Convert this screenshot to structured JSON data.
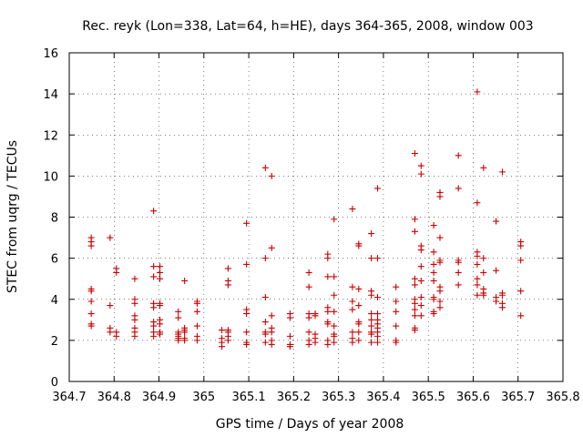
{
  "chart_data": {
    "type": "scatter",
    "title": "Rec. reyk (Lon=338, Lat=64, h=HE), days 364-365, 2008, window 003",
    "xlabel": "GPS time / Days of year 2008",
    "ylabel": "STEC from uqrg / TECUs",
    "xlim": [
      364.7,
      365.8
    ],
    "ylim": [
      0,
      16
    ],
    "xticks": [
      "364.7",
      "364.8",
      "364.9",
      "365",
      "365.1",
      "365.2",
      "365.3",
      "365.4",
      "365.5",
      "365.6",
      "365.7",
      "365.8"
    ],
    "yticks": [
      "0",
      "2",
      "4",
      "6",
      "8",
      "10",
      "12",
      "14",
      "16"
    ],
    "grid": true,
    "legend": "none",
    "marker": "plus",
    "color": "#cc0000",
    "points": [
      [
        364.749,
        7.0
      ],
      [
        364.749,
        6.8
      ],
      [
        364.749,
        6.6
      ],
      [
        364.749,
        4.5
      ],
      [
        364.749,
        4.4
      ],
      [
        364.749,
        3.9
      ],
      [
        364.749,
        3.3
      ],
      [
        364.749,
        2.8
      ],
      [
        364.749,
        2.7
      ],
      [
        364.791,
        7.0
      ],
      [
        364.791,
        3.7
      ],
      [
        364.791,
        2.6
      ],
      [
        364.791,
        2.4
      ],
      [
        364.805,
        5.5
      ],
      [
        364.805,
        5.3
      ],
      [
        364.805,
        2.4
      ],
      [
        364.805,
        2.2
      ],
      [
        364.846,
        5.0
      ],
      [
        364.846,
        4.0
      ],
      [
        364.846,
        3.8
      ],
      [
        364.846,
        3.2
      ],
      [
        364.846,
        3.0
      ],
      [
        364.846,
        2.6
      ],
      [
        364.846,
        2.4
      ],
      [
        364.846,
        2.2
      ],
      [
        364.888,
        8.3
      ],
      [
        364.888,
        5.6
      ],
      [
        364.888,
        5.1
      ],
      [
        364.888,
        3.8
      ],
      [
        364.888,
        3.6
      ],
      [
        364.888,
        2.9
      ],
      [
        364.888,
        2.7
      ],
      [
        364.888,
        2.4
      ],
      [
        364.888,
        2.2
      ],
      [
        364.902,
        5.6
      ],
      [
        364.902,
        5.3
      ],
      [
        364.902,
        5.0
      ],
      [
        364.902,
        3.8
      ],
      [
        364.902,
        3.7
      ],
      [
        364.902,
        3.0
      ],
      [
        364.902,
        2.8
      ],
      [
        364.902,
        2.4
      ],
      [
        364.902,
        2.3
      ],
      [
        364.943,
        3.4
      ],
      [
        364.943,
        3.1
      ],
      [
        364.943,
        2.4
      ],
      [
        364.943,
        2.3
      ],
      [
        364.943,
        2.2
      ],
      [
        364.943,
        2.1
      ],
      [
        364.943,
        2.0
      ],
      [
        364.957,
        4.9
      ],
      [
        364.957,
        2.6
      ],
      [
        364.957,
        2.5
      ],
      [
        364.957,
        2.4
      ],
      [
        364.957,
        2.1
      ],
      [
        364.957,
        2.0
      ],
      [
        364.985,
        3.9
      ],
      [
        364.985,
        3.8
      ],
      [
        364.985,
        3.4
      ],
      [
        364.985,
        2.7
      ],
      [
        364.985,
        2.2
      ],
      [
        364.985,
        2.0
      ],
      [
        365.04,
        2.5
      ],
      [
        365.04,
        2.1
      ],
      [
        365.04,
        1.9
      ],
      [
        365.04,
        1.7
      ],
      [
        365.054,
        5.5
      ],
      [
        365.054,
        4.9
      ],
      [
        365.054,
        4.7
      ],
      [
        365.054,
        2.5
      ],
      [
        365.054,
        2.4
      ],
      [
        365.054,
        2.2
      ],
      [
        365.054,
        2.0
      ],
      [
        365.095,
        7.7
      ],
      [
        365.095,
        5.7
      ],
      [
        365.095,
        3.5
      ],
      [
        365.095,
        3.3
      ],
      [
        365.095,
        2.4
      ],
      [
        365.095,
        1.9
      ],
      [
        365.095,
        1.8
      ],
      [
        365.137,
        10.4
      ],
      [
        365.137,
        6.0
      ],
      [
        365.137,
        4.1
      ],
      [
        365.137,
        2.9
      ],
      [
        365.137,
        2.4
      ],
      [
        365.137,
        2.3
      ],
      [
        365.137,
        1.9
      ],
      [
        365.151,
        10.0
      ],
      [
        365.151,
        6.5
      ],
      [
        365.151,
        3.2
      ],
      [
        365.151,
        2.6
      ],
      [
        365.151,
        2.4
      ],
      [
        365.151,
        2.0
      ],
      [
        365.151,
        1.8
      ],
      [
        365.192,
        3.3
      ],
      [
        365.192,
        3.1
      ],
      [
        365.192,
        2.2
      ],
      [
        365.192,
        1.8
      ],
      [
        365.192,
        1.7
      ],
      [
        365.234,
        5.3
      ],
      [
        365.234,
        4.6
      ],
      [
        365.234,
        3.3
      ],
      [
        365.234,
        3.1
      ],
      [
        365.234,
        2.4
      ],
      [
        365.234,
        2.0
      ],
      [
        365.234,
        1.8
      ],
      [
        365.248,
        3.3
      ],
      [
        365.248,
        3.2
      ],
      [
        365.248,
        2.3
      ],
      [
        365.248,
        2.1
      ],
      [
        365.248,
        1.9
      ],
      [
        365.276,
        6.2
      ],
      [
        365.276,
        6.0
      ],
      [
        365.276,
        5.1
      ],
      [
        365.276,
        3.6
      ],
      [
        365.276,
        3.4
      ],
      [
        365.276,
        2.9
      ],
      [
        365.276,
        2.8
      ],
      [
        365.276,
        2.0
      ],
      [
        365.276,
        1.8
      ],
      [
        365.29,
        7.9
      ],
      [
        365.29,
        5.1
      ],
      [
        365.29,
        4.2
      ],
      [
        365.29,
        3.4
      ],
      [
        365.29,
        2.7
      ],
      [
        365.29,
        2.3
      ],
      [
        365.29,
        2.2
      ],
      [
        365.29,
        1.9
      ],
      [
        365.331,
        8.4
      ],
      [
        365.331,
        4.6
      ],
      [
        365.331,
        3.9
      ],
      [
        365.331,
        3.5
      ],
      [
        365.331,
        2.4
      ],
      [
        365.331,
        2.1
      ],
      [
        365.331,
        1.9
      ],
      [
        365.345,
        6.7
      ],
      [
        365.345,
        6.6
      ],
      [
        365.345,
        4.5
      ],
      [
        365.345,
        3.7
      ],
      [
        365.345,
        2.9
      ],
      [
        365.345,
        2.8
      ],
      [
        365.345,
        2.4
      ],
      [
        365.345,
        2.0
      ],
      [
        365.373,
        7.2
      ],
      [
        365.373,
        6.0
      ],
      [
        365.373,
        4.4
      ],
      [
        365.373,
        4.2
      ],
      [
        365.373,
        3.3
      ],
      [
        365.373,
        3.0
      ],
      [
        365.373,
        2.7
      ],
      [
        365.373,
        2.4
      ],
      [
        365.373,
        2.3
      ],
      [
        365.373,
        1.9
      ],
      [
        365.387,
        9.4
      ],
      [
        365.387,
        6.0
      ],
      [
        365.387,
        4.1
      ],
      [
        365.387,
        3.3
      ],
      [
        365.387,
        3.0
      ],
      [
        365.387,
        2.8
      ],
      [
        365.387,
        2.6
      ],
      [
        365.387,
        2.4
      ],
      [
        365.387,
        2.2
      ],
      [
        365.387,
        1.9
      ],
      [
        365.428,
        4.6
      ],
      [
        365.428,
        3.9
      ],
      [
        365.428,
        3.4
      ],
      [
        365.428,
        2.7
      ],
      [
        365.428,
        2.0
      ],
      [
        365.428,
        1.9
      ],
      [
        365.47,
        11.1
      ],
      [
        365.47,
        7.9
      ],
      [
        365.47,
        7.3
      ],
      [
        365.47,
        5.0
      ],
      [
        365.47,
        4.7
      ],
      [
        365.47,
        4.0
      ],
      [
        365.47,
        3.8
      ],
      [
        365.47,
        3.5
      ],
      [
        365.47,
        3.2
      ],
      [
        365.47,
        2.6
      ],
      [
        365.47,
        2.5
      ],
      [
        365.484,
        10.5
      ],
      [
        365.484,
        10.1
      ],
      [
        365.484,
        6.6
      ],
      [
        365.484,
        6.4
      ],
      [
        365.484,
        5.6
      ],
      [
        365.484,
        4.9
      ],
      [
        365.484,
        4.1
      ],
      [
        365.484,
        3.7
      ],
      [
        365.484,
        3.2
      ],
      [
        365.512,
        7.6
      ],
      [
        365.512,
        6.3
      ],
      [
        365.512,
        5.7
      ],
      [
        365.512,
        5.3
      ],
      [
        365.512,
        4.9
      ],
      [
        365.512,
        4.1
      ],
      [
        365.512,
        4.0
      ],
      [
        365.512,
        3.4
      ],
      [
        365.512,
        3.3
      ],
      [
        365.526,
        9.2
      ],
      [
        365.526,
        9.0
      ],
      [
        365.526,
        7.0
      ],
      [
        365.526,
        5.9
      ],
      [
        365.526,
        5.8
      ],
      [
        365.526,
        4.6
      ],
      [
        365.526,
        4.4
      ],
      [
        365.526,
        3.9
      ],
      [
        365.526,
        3.6
      ],
      [
        365.567,
        11.0
      ],
      [
        365.567,
        9.4
      ],
      [
        365.567,
        5.9
      ],
      [
        365.567,
        5.8
      ],
      [
        365.567,
        5.3
      ],
      [
        365.567,
        4.7
      ],
      [
        365.609,
        14.1
      ],
      [
        365.609,
        8.7
      ],
      [
        365.609,
        6.3
      ],
      [
        365.609,
        6.1
      ],
      [
        365.609,
        5.7
      ],
      [
        365.609,
        5.0
      ],
      [
        365.609,
        4.7
      ],
      [
        365.609,
        4.2
      ],
      [
        365.623,
        10.4
      ],
      [
        365.623,
        6.0
      ],
      [
        365.623,
        5.3
      ],
      [
        365.623,
        4.5
      ],
      [
        365.623,
        4.3
      ],
      [
        365.623,
        4.2
      ],
      [
        365.651,
        7.8
      ],
      [
        365.651,
        5.4
      ],
      [
        365.651,
        4.1
      ],
      [
        365.651,
        3.9
      ],
      [
        365.665,
        10.2
      ],
      [
        365.665,
        4.3
      ],
      [
        365.665,
        4.2
      ],
      [
        365.665,
        3.8
      ],
      [
        365.665,
        3.6
      ],
      [
        365.706,
        6.8
      ],
      [
        365.706,
        6.6
      ],
      [
        365.706,
        5.9
      ],
      [
        365.706,
        4.4
      ],
      [
        365.706,
        3.2
      ]
    ]
  }
}
